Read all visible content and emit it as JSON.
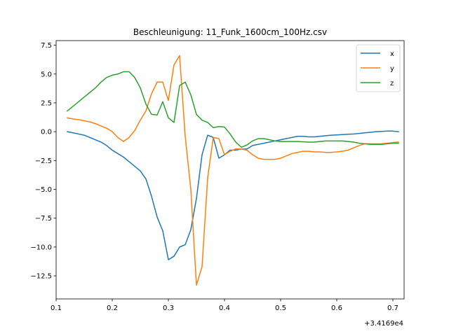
{
  "chart_data": {
    "type": "line",
    "title": "Beschleunigung: 11_Funk_1600cm_100Hz.csv",
    "xlabel": "",
    "ylabel": "",
    "x_offset_label": "+3.4169e4",
    "xlim": [
      0.1,
      0.72
    ],
    "ylim": [
      -14.5,
      7.9
    ],
    "xticks": [
      0.1,
      0.2,
      0.3,
      0.4,
      0.5,
      0.6,
      0.7
    ],
    "xtick_labels": [
      "0.1",
      "0.2",
      "0.3",
      "0.4",
      "0.5",
      "0.6",
      "0.7"
    ],
    "yticks": [
      7.5,
      5.0,
      2.5,
      0.0,
      -2.5,
      -5.0,
      -7.5,
      -10.0,
      -12.5
    ],
    "ytick_labels": [
      "7.5",
      "5.0",
      "2.5",
      "0.0",
      "−2.5",
      "−5.0",
      "−7.5",
      "−10.0",
      "−12.5"
    ],
    "grid": false,
    "legend_position": "top-right",
    "x": [
      0.12,
      0.13,
      0.14,
      0.15,
      0.16,
      0.17,
      0.18,
      0.19,
      0.2,
      0.21,
      0.22,
      0.23,
      0.24,
      0.25,
      0.26,
      0.27,
      0.28,
      0.29,
      0.3,
      0.31,
      0.32,
      0.33,
      0.34,
      0.35,
      0.36,
      0.37,
      0.38,
      0.39,
      0.4,
      0.41,
      0.42,
      0.43,
      0.44,
      0.45,
      0.46,
      0.47,
      0.48,
      0.49,
      0.5,
      0.51,
      0.52,
      0.53,
      0.54,
      0.55,
      0.56,
      0.57,
      0.58,
      0.59,
      0.6,
      0.61,
      0.62,
      0.63,
      0.64,
      0.65,
      0.66,
      0.67,
      0.68,
      0.69,
      0.7,
      0.71
    ],
    "series": [
      {
        "name": "x",
        "color": "#1f77b4",
        "values": [
          0.0,
          -0.1,
          -0.2,
          -0.3,
          -0.5,
          -0.7,
          -0.9,
          -1.2,
          -1.6,
          -1.9,
          -2.2,
          -2.6,
          -3.0,
          -3.4,
          -4.1,
          -5.6,
          -7.4,
          -8.6,
          -11.1,
          -10.8,
          -10.0,
          -9.8,
          -8.5,
          -5.8,
          -2.0,
          -0.3,
          -0.5,
          -2.3,
          -2.0,
          -1.6,
          -1.6,
          -1.5,
          -1.5,
          -1.2,
          -1.1,
          -1.0,
          -0.9,
          -0.8,
          -0.7,
          -0.6,
          -0.5,
          -0.4,
          -0.4,
          -0.45,
          -0.45,
          -0.4,
          -0.35,
          -0.3,
          -0.28,
          -0.25,
          -0.22,
          -0.2,
          -0.15,
          -0.1,
          -0.05,
          0.0,
          0.02,
          0.05,
          0.05,
          0.0
        ]
      },
      {
        "name": "y",
        "color": "#ff7f0e",
        "values": [
          1.2,
          1.1,
          1.05,
          0.95,
          0.85,
          0.7,
          0.5,
          0.3,
          0.0,
          -0.5,
          -0.85,
          -0.5,
          0.1,
          1.0,
          1.8,
          3.3,
          4.3,
          4.3,
          2.7,
          5.8,
          6.6,
          -0.4,
          -5.0,
          -13.3,
          -11.7,
          -4.0,
          -0.5,
          -0.6,
          -2.0,
          -1.7,
          -1.5,
          -1.5,
          -1.6,
          -2.0,
          -2.3,
          -2.4,
          -2.4,
          -2.4,
          -2.3,
          -2.1,
          -1.9,
          -1.8,
          -1.7,
          -1.7,
          -1.75,
          -1.75,
          -1.8,
          -1.8,
          -1.75,
          -1.7,
          -1.6,
          -1.4,
          -1.2,
          -1.05,
          -1.05,
          -1.05,
          -1.05,
          -1.0,
          -0.95,
          -0.9
        ]
      },
      {
        "name": "z",
        "color": "#2ca02c",
        "values": [
          1.8,
          2.2,
          2.6,
          3.0,
          3.4,
          3.8,
          4.3,
          4.7,
          4.9,
          5.0,
          5.2,
          5.2,
          4.7,
          3.8,
          2.4,
          1.5,
          1.45,
          2.6,
          1.2,
          0.8,
          4.0,
          4.3,
          3.2,
          1.5,
          1.0,
          0.8,
          0.35,
          0.45,
          0.4,
          -0.2,
          -0.9,
          -1.35,
          -1.15,
          -0.8,
          -0.6,
          -0.6,
          -0.7,
          -0.8,
          -0.85,
          -0.85,
          -0.85,
          -0.85,
          -0.88,
          -0.9,
          -0.9,
          -0.85,
          -0.8,
          -0.8,
          -0.8,
          -0.8,
          -0.85,
          -0.9,
          -1.0,
          -1.05,
          -1.1,
          -1.1,
          -1.1,
          -1.05,
          -1.0,
          -1.0
        ]
      }
    ]
  }
}
